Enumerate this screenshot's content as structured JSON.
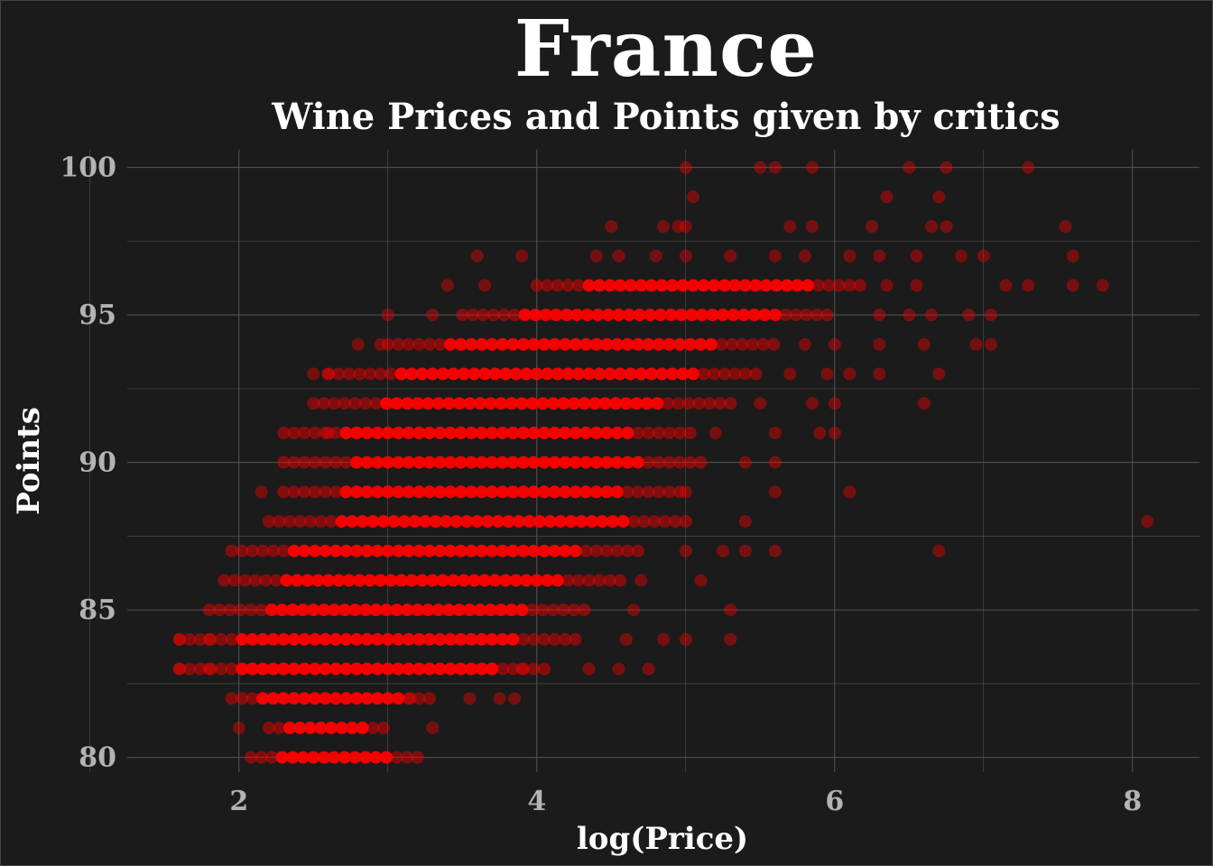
{
  "chart": {
    "title": "France",
    "subtitle": "Wine Prices and Points given by critics"
  },
  "chart_data": {
    "type": "scatter",
    "title": "France",
    "subtitle": "Wine Prices and Points given by critics",
    "xlabel": "log(Price)",
    "ylabel": "Points",
    "xlim": [
      1.25,
      8.45
    ],
    "ylim": [
      79.5,
      100.6
    ],
    "x_ticks": [
      2,
      4,
      6,
      8
    ],
    "y_ticks": [
      80,
      85,
      90,
      95,
      100
    ],
    "grid": true,
    "legend": "none",
    "colors": {
      "background": "#1b1b1b",
      "grid": "#555555",
      "point": "#ff0000",
      "point_faded": "#7a0a0a"
    },
    "bands": [
      {
        "y": 80,
        "x_min": 2.08,
        "x_max": 3.22
      },
      {
        "y": 81,
        "x_min": 2.2,
        "x_max": 3.0
      },
      {
        "y": 82,
        "x_min": 1.95,
        "x_max": 3.3
      },
      {
        "y": 83,
        "x_min": 1.6,
        "x_max": 4.1
      },
      {
        "y": 84,
        "x_min": 1.6,
        "x_max": 4.3
      },
      {
        "y": 85,
        "x_min": 1.8,
        "x_max": 4.35
      },
      {
        "y": 86,
        "x_min": 1.9,
        "x_max": 4.6
      },
      {
        "y": 87,
        "x_min": 1.95,
        "x_max": 4.7
      },
      {
        "y": 88,
        "x_min": 2.2,
        "x_max": 5.05
      },
      {
        "y": 89,
        "x_min": 2.3,
        "x_max": 5.0
      },
      {
        "y": 90,
        "x_min": 2.3,
        "x_max": 5.1
      },
      {
        "y": 91,
        "x_min": 2.3,
        "x_max": 5.05
      },
      {
        "y": 92,
        "x_min": 2.5,
        "x_max": 5.3
      },
      {
        "y": 93,
        "x_min": 2.6,
        "x_max": 5.5
      },
      {
        "y": 94,
        "x_min": 3.0,
        "x_max": 5.6
      },
      {
        "y": 95,
        "x_min": 3.5,
        "x_max": 6.0
      },
      {
        "y": 96,
        "x_min": 4.0,
        "x_max": 6.2
      }
    ],
    "points": [
      [
        5.0,
        100
      ],
      [
        5.5,
        100
      ],
      [
        5.6,
        100
      ],
      [
        5.85,
        100
      ],
      [
        6.5,
        100
      ],
      [
        6.75,
        100
      ],
      [
        7.3,
        100
      ],
      [
        5.05,
        99
      ],
      [
        6.35,
        99
      ],
      [
        6.7,
        99
      ],
      [
        4.5,
        98
      ],
      [
        4.85,
        98
      ],
      [
        4.95,
        98
      ],
      [
        5.0,
        98
      ],
      [
        5.7,
        98
      ],
      [
        5.85,
        98
      ],
      [
        6.25,
        98
      ],
      [
        6.65,
        98
      ],
      [
        6.75,
        98
      ],
      [
        7.55,
        98
      ],
      [
        3.6,
        97
      ],
      [
        3.9,
        97
      ],
      [
        4.4,
        97
      ],
      [
        4.55,
        97
      ],
      [
        4.8,
        97
      ],
      [
        5.0,
        97
      ],
      [
        5.3,
        97
      ],
      [
        5.6,
        97
      ],
      [
        5.8,
        97
      ],
      [
        6.1,
        97
      ],
      [
        6.3,
        97
      ],
      [
        6.55,
        97
      ],
      [
        6.85,
        97
      ],
      [
        7.0,
        97
      ],
      [
        7.6,
        97
      ],
      [
        3.4,
        96
      ],
      [
        3.65,
        96
      ],
      [
        6.35,
        96
      ],
      [
        6.55,
        96
      ],
      [
        7.15,
        96
      ],
      [
        7.3,
        96
      ],
      [
        7.6,
        96
      ],
      [
        7.8,
        96
      ],
      [
        3.0,
        95
      ],
      [
        3.3,
        95
      ],
      [
        6.3,
        95
      ],
      [
        6.5,
        95
      ],
      [
        6.65,
        95
      ],
      [
        6.9,
        95
      ],
      [
        7.05,
        95
      ],
      [
        2.8,
        94
      ],
      [
        2.95,
        94
      ],
      [
        5.8,
        94
      ],
      [
        6.0,
        94
      ],
      [
        6.3,
        94
      ],
      [
        6.6,
        94
      ],
      [
        6.95,
        94
      ],
      [
        7.05,
        94
      ],
      [
        2.5,
        93
      ],
      [
        2.6,
        93
      ],
      [
        5.7,
        93
      ],
      [
        5.95,
        93
      ],
      [
        6.1,
        93
      ],
      [
        6.3,
        93
      ],
      [
        6.7,
        93
      ],
      [
        5.5,
        92
      ],
      [
        5.85,
        92
      ],
      [
        6.0,
        92
      ],
      [
        6.6,
        92
      ],
      [
        2.6,
        91
      ],
      [
        5.2,
        91
      ],
      [
        5.6,
        91
      ],
      [
        5.9,
        91
      ],
      [
        6.0,
        91
      ],
      [
        5.4,
        90
      ],
      [
        5.6,
        90
      ],
      [
        2.15,
        89
      ],
      [
        5.0,
        89
      ],
      [
        5.6,
        89
      ],
      [
        6.1,
        89
      ],
      [
        5.4,
        88
      ],
      [
        8.1,
        88
      ],
      [
        5.0,
        87
      ],
      [
        5.25,
        87
      ],
      [
        5.4,
        87
      ],
      [
        5.6,
        87
      ],
      [
        6.7,
        87
      ],
      [
        4.7,
        86
      ],
      [
        5.1,
        86
      ],
      [
        4.65,
        85
      ],
      [
        5.3,
        85
      ],
      [
        4.6,
        84
      ],
      [
        4.85,
        84
      ],
      [
        5.0,
        84
      ],
      [
        5.3,
        84
      ],
      [
        3.9,
        83
      ],
      [
        4.35,
        83
      ],
      [
        4.55,
        83
      ],
      [
        4.75,
        83
      ],
      [
        3.15,
        82
      ],
      [
        3.55,
        82
      ],
      [
        3.75,
        82
      ],
      [
        3.85,
        82
      ],
      [
        3.3,
        81
      ],
      [
        2.0,
        81
      ],
      [
        1.6,
        84
      ],
      [
        1.6,
        83
      ],
      [
        1.8,
        84
      ],
      [
        1.8,
        83
      ]
    ]
  }
}
